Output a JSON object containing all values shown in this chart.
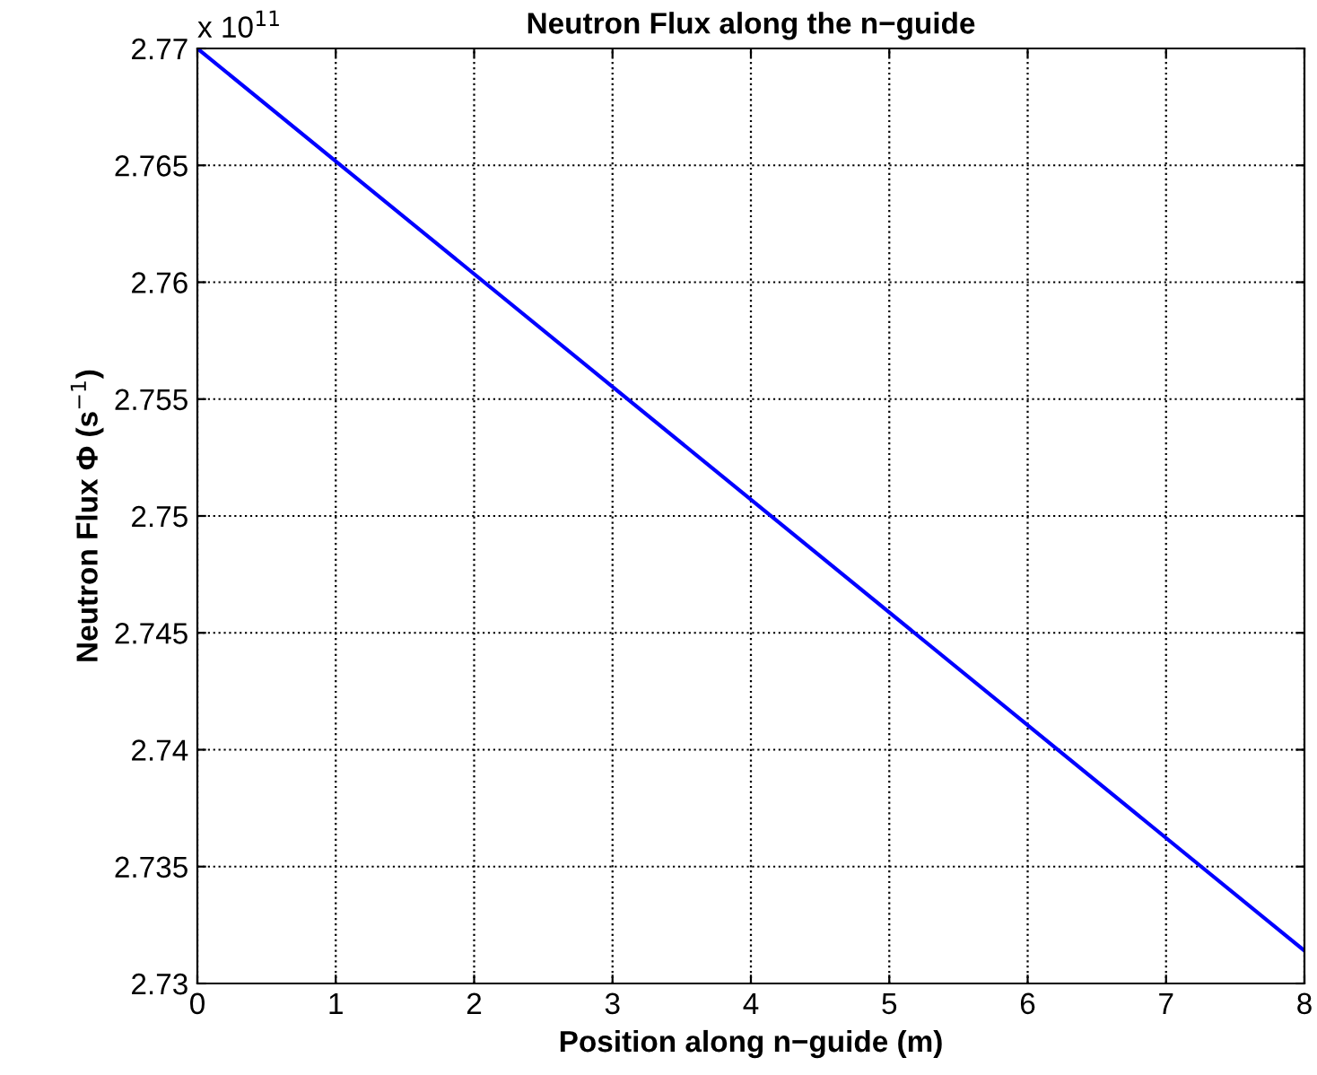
{
  "chart_data": {
    "type": "line",
    "title": "Neutron Flux along the n−guide",
    "xlabel": "Position along n−guide (m)",
    "ylabel": "Neutron Flux Φ (s$^{−1}$)",
    "annotations": [
      "x 10$^{11}$"
    ],
    "x": [
      0,
      8
    ],
    "series": [
      {
        "color": "#0000ff",
        "values": [
          2.77,
          2.7314
        ]
      }
    ],
    "xlim": [
      0,
      8
    ],
    "xticks": [
      0,
      1,
      2,
      3,
      4,
      5,
      6,
      7,
      8
    ],
    "ylim": [
      2.73,
      2.77
    ],
    "yticks": [
      2.73,
      2.735,
      2.74,
      2.745,
      2.75,
      2.755,
      2.76,
      2.765,
      2.77
    ],
    "grid": true,
    "line_style": "solid"
  }
}
